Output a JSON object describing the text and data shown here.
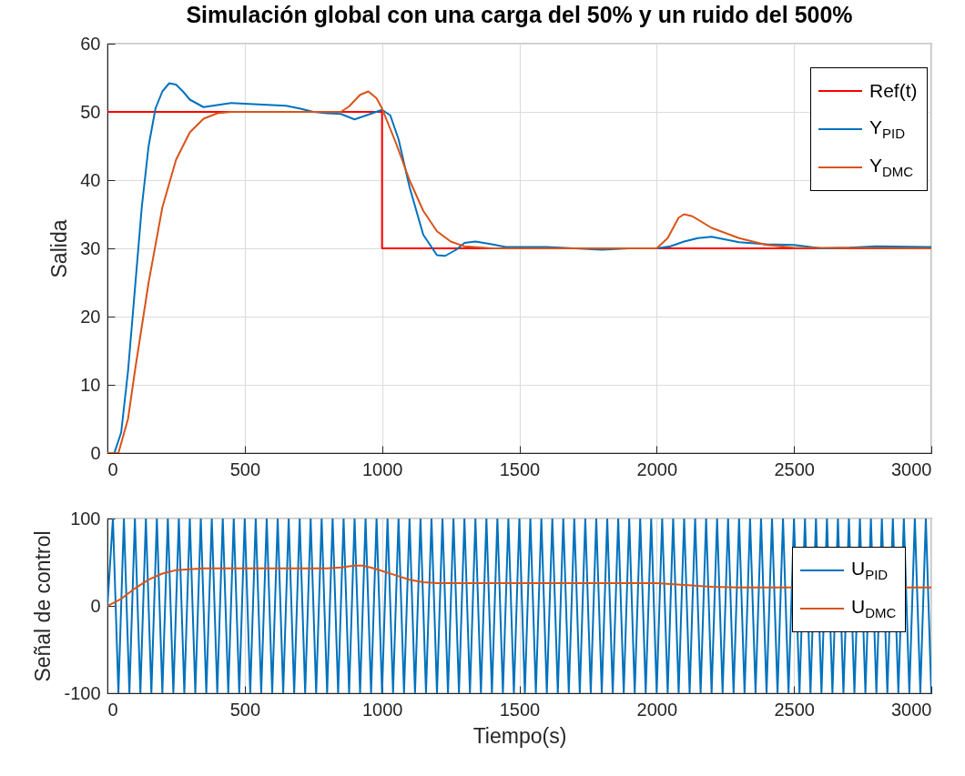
{
  "chart_data": [
    {
      "type": "line",
      "title": "Simulación global con una carga del 50% y un ruido del 500%",
      "ylabel": "Salida",
      "xlim": [
        0,
        3000
      ],
      "xticks": [
        0,
        500,
        1000,
        1500,
        2000,
        2500,
        3000
      ],
      "ylim": [
        0,
        60
      ],
      "yticks": [
        0,
        10,
        20,
        30,
        40,
        50,
        60
      ],
      "grid": true,
      "legend": "top right",
      "series": [
        {
          "name": "Ref(t)",
          "type": "step",
          "color": "#ff0000",
          "x": [
            0,
            1000,
            3000
          ],
          "values": [
            50,
            30,
            30
          ]
        },
        {
          "name": "Y$_{PID}$",
          "color": "#0072bd",
          "x": [
            0,
            25,
            50,
            75,
            100,
            125,
            150,
            175,
            200,
            225,
            250,
            275,
            300,
            350,
            400,
            450,
            500,
            600,
            650,
            700,
            750,
            800,
            850,
            900,
            950,
            1000,
            1030,
            1060,
            1100,
            1150,
            1200,
            1230,
            1270,
            1300,
            1340,
            1400,
            1450,
            1600,
            1700,
            1800,
            1900,
            2000,
            2050,
            2100,
            2150,
            2200,
            2250,
            2300,
            2400,
            2500,
            2600,
            2700,
            2800,
            3000
          ],
          "values": [
            0,
            0,
            3,
            12,
            24,
            36,
            45,
            50.5,
            53,
            54.2,
            54,
            53,
            51.8,
            50.7,
            51,
            51.3,
            51.2,
            51,
            50.9,
            50.5,
            50,
            49.8,
            49.7,
            48.9,
            49.6,
            50.3,
            49.5,
            46,
            39,
            32,
            29,
            28.9,
            29.8,
            30.8,
            31,
            30.6,
            30.2,
            30.2,
            30,
            29.8,
            30,
            30,
            30.3,
            31,
            31.5,
            31.7,
            31.3,
            30.9,
            30.6,
            30.5,
            30,
            30.1,
            30.3,
            30.2
          ]
        },
        {
          "name": "Y$_{DMC}$",
          "color": "#d95319",
          "x": [
            0,
            40,
            75,
            100,
            150,
            200,
            250,
            300,
            350,
            400,
            450,
            850,
            880,
            920,
            950,
            980,
            1000,
            1050,
            1100,
            1150,
            1200,
            1250,
            1300,
            1400,
            2000,
            2040,
            2080,
            2100,
            2130,
            2200,
            2300,
            2400,
            2500,
            3000
          ],
          "values": [
            0,
            0,
            5,
            12,
            25,
            36,
            43,
            47,
            49,
            49.8,
            50,
            50,
            50.8,
            52.5,
            53,
            52,
            50.5,
            45.5,
            40,
            35.5,
            32.5,
            31,
            30.3,
            30,
            30,
            31.5,
            34.5,
            35,
            34.7,
            33,
            31.5,
            30.5,
            30.1,
            30
          ]
        }
      ]
    },
    {
      "type": "line",
      "xlabel": "Tiempo(s)",
      "ylabel": "Señal de control",
      "xlim": [
        0,
        3000
      ],
      "xticks": [
        0,
        500,
        1000,
        1500,
        2000,
        2500,
        3000
      ],
      "ylim": [
        -100,
        100
      ],
      "yticks": [
        -100,
        0,
        100
      ],
      "grid": true,
      "legend": "right",
      "series": [
        {
          "name": "U$_{PID}$",
          "color": "#0072bd",
          "x": [
            0,
            20,
            40,
            60,
            80,
            100,
            120,
            140,
            160,
            180,
            200,
            220,
            240,
            260,
            280,
            300,
            320,
            340,
            360,
            380,
            400,
            420,
            440,
            460,
            480,
            500,
            520,
            540,
            560,
            580,
            600,
            620,
            640,
            660,
            680,
            700,
            720,
            740,
            760,
            780,
            800,
            820,
            840,
            860,
            880,
            900,
            920,
            940,
            960,
            980,
            1000,
            1020,
            1040,
            1060,
            1080,
            1100,
            1120,
            1140,
            1160,
            1180,
            1200,
            1220,
            1240,
            1260,
            1280,
            1300,
            1320,
            1340,
            1360,
            1380,
            1400,
            1420,
            1440,
            1460,
            1480,
            1500,
            1520,
            1540,
            1560,
            1580,
            1600,
            1620,
            1640,
            1660,
            1680,
            1700,
            1720,
            1740,
            1760,
            1780,
            1800,
            1820,
            1840,
            1860,
            1880,
            1900,
            1920,
            1940,
            1960,
            1980,
            2000,
            2020,
            2040,
            2060,
            2080,
            2100,
            2120,
            2140,
            2160,
            2180,
            2200,
            2220,
            2240,
            2260,
            2280,
            2300,
            2320,
            2340,
            2360,
            2380,
            2400,
            2420,
            2440,
            2460,
            2480,
            2500,
            2520,
            2540,
            2560,
            2580,
            2600,
            2620,
            2640,
            2660,
            2680,
            2700,
            2720,
            2740,
            2760,
            2780,
            2800,
            2820,
            2840,
            2860,
            2880,
            2900,
            2920,
            2940,
            2960,
            2980,
            3000
          ],
          "values": [
            0,
            100,
            -100,
            100,
            -100,
            100,
            -100,
            100,
            -100,
            100,
            -100,
            100,
            -100,
            100,
            -100,
            100,
            -100,
            100,
            -100,
            100,
            -100,
            100,
            -100,
            100,
            -100,
            100,
            -100,
            100,
            -100,
            100,
            -100,
            100,
            -100,
            100,
            -100,
            100,
            -100,
            100,
            -100,
            100,
            -100,
            100,
            -100,
            100,
            -100,
            100,
            -100,
            100,
            -100,
            100,
            -100,
            100,
            -100,
            100,
            -100,
            100,
            -100,
            100,
            -100,
            100,
            -100,
            100,
            -100,
            100,
            -100,
            100,
            -100,
            100,
            -100,
            100,
            -100,
            100,
            -100,
            100,
            -100,
            100,
            -100,
            100,
            -100,
            100,
            -100,
            100,
            -100,
            100,
            -100,
            100,
            -100,
            100,
            -100,
            100,
            -100,
            100,
            -100,
            100,
            -100,
            100,
            -100,
            100,
            -100,
            100,
            -100,
            100,
            -100,
            100,
            -100,
            100,
            -100,
            100,
            -100,
            100,
            -100,
            100,
            -100,
            100,
            -100,
            100,
            -100,
            100,
            -100,
            100,
            -100,
            100,
            -100,
            100,
            -100,
            100,
            -100,
            100,
            -100,
            100,
            -100,
            100,
            -100,
            100,
            -100,
            100,
            -100,
            100,
            -100,
            100,
            -100,
            100,
            -100,
            100,
            -100,
            100,
            -100,
            100,
            -100,
            100,
            -100
          ]
        },
        {
          "name": "U$_{DMC}$",
          "color": "#d95319",
          "x": [
            0,
            50,
            100,
            150,
            200,
            250,
            300,
            350,
            400,
            800,
            850,
            900,
            930,
            970,
            1050,
            1100,
            1150,
            1200,
            1300,
            2000,
            2050,
            2100,
            2200,
            2300,
            3000
          ],
          "values": [
            0,
            8,
            20,
            30,
            37,
            41,
            42,
            43,
            43,
            43,
            44,
            46,
            46,
            43,
            35,
            30,
            27,
            26,
            26,
            26,
            25,
            24,
            22,
            21,
            21
          ]
        }
      ]
    }
  ]
}
